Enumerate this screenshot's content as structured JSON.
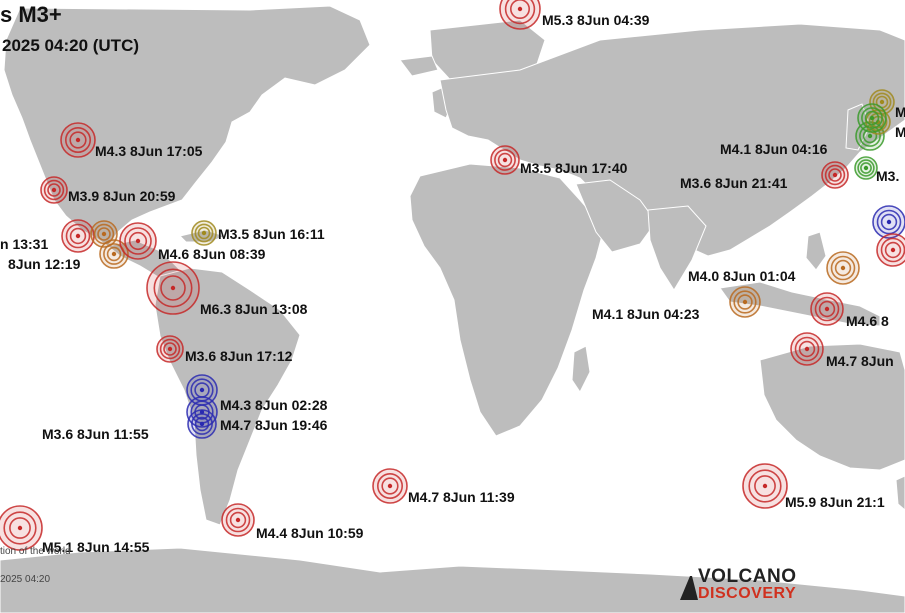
{
  "title": "s M3+",
  "subtitle": "2025 04:20 (UTC)",
  "credit": "tion of the world",
  "timestamp_small": "2025 04:20",
  "logo": {
    "line1": "VOLCANO",
    "line2": "DISCOVERY"
  },
  "colors": {
    "ocean": "#ffffff",
    "land": "#bdbdbd",
    "red": "#c62828",
    "orange": "#b86a20",
    "yellow": "#a08a1e",
    "green": "#3a9a2a",
    "blue": "#2a2ab0",
    "logo_red": "#d0311f"
  },
  "labels": [
    {
      "text": "M5.3  8Jun 04:39"
    },
    {
      "text": "M4.3  8Jun 17:05"
    },
    {
      "text": "M3.9  8Jun 20:59"
    },
    {
      "text": "n 13:31"
    },
    {
      "text": "8Jun 12:19"
    },
    {
      "text": "M3.5  8Jun 16:11"
    },
    {
      "text": "M4.6  8Jun 08:39"
    },
    {
      "text": "M6.3  8Jun 13:08"
    },
    {
      "text": "M3.6  8Jun 17:12"
    },
    {
      "text": "M4.3  8Jun 02:28"
    },
    {
      "text": "M4.7  8Jun 19:46"
    },
    {
      "text": "M3.6  8Jun 11:55"
    },
    {
      "text": "M5.1  8Jun 14:55"
    },
    {
      "text": "M4.4  8Jun 10:59"
    },
    {
      "text": "M4.7  8Jun 11:39"
    },
    {
      "text": "M3.5  8Jun 17:40"
    },
    {
      "text": "M4.1  8Jun 04:16"
    },
    {
      "text": "M3.6  8Jun 21:41"
    },
    {
      "text": "M4.0  8Jun 01:04"
    },
    {
      "text": "M4.1  8Jun 04:23"
    },
    {
      "text": "M4.6  8"
    },
    {
      "text": "M4.7  8Jun"
    },
    {
      "text": "M5.9  8Jun 21:1"
    },
    {
      "text": "M3."
    },
    {
      "text": "M"
    },
    {
      "text": "M"
    }
  ],
  "quakes": [
    {
      "mag": 5.3,
      "time": "8Jun 04:39",
      "color": "red"
    },
    {
      "mag": 4.3,
      "time": "8Jun 17:05",
      "color": "red"
    },
    {
      "mag": 3.9,
      "time": "8Jun 20:59",
      "color": "red"
    },
    {
      "mag": null,
      "time": "13:31",
      "color": "red"
    },
    {
      "mag": null,
      "time": "8Jun 12:19",
      "color": "orange"
    },
    {
      "mag": null,
      "time": "",
      "color": "orange"
    },
    {
      "mag": 4.6,
      "time": "8Jun 08:39",
      "color": "red"
    },
    {
      "mag": 3.5,
      "time": "8Jun 16:11",
      "color": "yellow"
    },
    {
      "mag": 6.3,
      "time": "8Jun 13:08",
      "color": "red"
    },
    {
      "mag": 3.6,
      "time": "8Jun 17:12",
      "color": "red"
    },
    {
      "mag": 4.3,
      "time": "8Jun 02:28",
      "color": "blue"
    },
    {
      "mag": 4.7,
      "time": "8Jun 19:46",
      "color": "blue"
    },
    {
      "mag": 3.6,
      "time": "8Jun 11:55",
      "color": "blue"
    },
    {
      "mag": 5.1,
      "time": "8Jun 14:55",
      "color": "red"
    },
    {
      "mag": 4.4,
      "time": "8Jun 10:59",
      "color": "red"
    },
    {
      "mag": 4.7,
      "time": "8Jun 11:39",
      "color": "red"
    },
    {
      "mag": 3.5,
      "time": "8Jun 17:40",
      "color": "red"
    },
    {
      "mag": 4.1,
      "time": "8Jun 04:16",
      "color": "green"
    },
    {
      "mag": null,
      "time": "",
      "color": "green"
    },
    {
      "mag": null,
      "time": "",
      "color": "yellow"
    },
    {
      "mag": null,
      "time": "",
      "color": "yellow"
    },
    {
      "mag": null,
      "time": "",
      "color": "green"
    },
    {
      "mag": 3.6,
      "time": "8Jun 21:41",
      "color": "red"
    },
    {
      "mag": null,
      "time": "",
      "color": "blue"
    },
    {
      "mag": null,
      "time": "",
      "color": "red"
    },
    {
      "mag": 4.0,
      "time": "8Jun 01:04",
      "color": "orange"
    },
    {
      "mag": 4.1,
      "time": "8Jun 04:23",
      "color": "orange"
    },
    {
      "mag": 4.6,
      "time": "8",
      "color": "red"
    },
    {
      "mag": 4.7,
      "time": "8Jun",
      "color": "red"
    },
    {
      "mag": 5.9,
      "time": "8Jun 21:1",
      "color": "red"
    }
  ]
}
